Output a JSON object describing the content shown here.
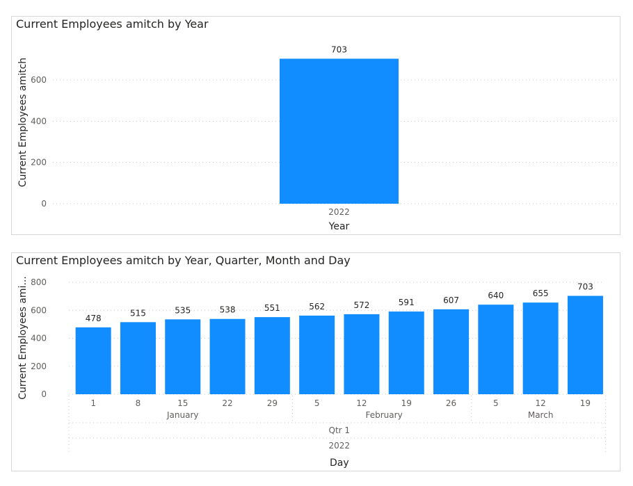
{
  "charts": [
    {
      "title": "Current Employees amitch by Year",
      "xlabel": "Year",
      "ylabel": "Current Employees amitch",
      "bar_color": "#118DFF"
    },
    {
      "title": "Current Employees amitch by Year, Quarter, Month and Day",
      "xlabel": "Day",
      "ylabel": "Current Employees ami...",
      "bar_color": "#118DFF"
    }
  ],
  "chart_data": [
    {
      "type": "bar",
      "title": "Current Employees amitch by Year",
      "xlabel": "Year",
      "ylabel": "Current Employees amitch",
      "categories": [
        "2022"
      ],
      "values": [
        703
      ],
      "ylim": [
        0,
        700
      ],
      "yticks": [
        0,
        200,
        400,
        600
      ],
      "grid": true
    },
    {
      "type": "bar",
      "title": "Current Employees amitch by Year, Quarter, Month and Day",
      "xlabel": "Day",
      "ylabel": "Current Employees ami...",
      "categories": [
        "1",
        "8",
        "15",
        "22",
        "29",
        "5",
        "12",
        "19",
        "26",
        "5",
        "12",
        "19"
      ],
      "values": [
        478,
        515,
        535,
        538,
        551,
        562,
        572,
        591,
        607,
        640,
        655,
        703
      ],
      "months": [
        {
          "label": "January",
          "count": 5
        },
        {
          "label": "February",
          "count": 4
        },
        {
          "label": "March",
          "count": 3
        }
      ],
      "quarter": "Qtr 1",
      "year": "2022",
      "ylim": [
        0,
        800
      ],
      "yticks": [
        0,
        200,
        400,
        600,
        800
      ],
      "grid": true
    }
  ]
}
